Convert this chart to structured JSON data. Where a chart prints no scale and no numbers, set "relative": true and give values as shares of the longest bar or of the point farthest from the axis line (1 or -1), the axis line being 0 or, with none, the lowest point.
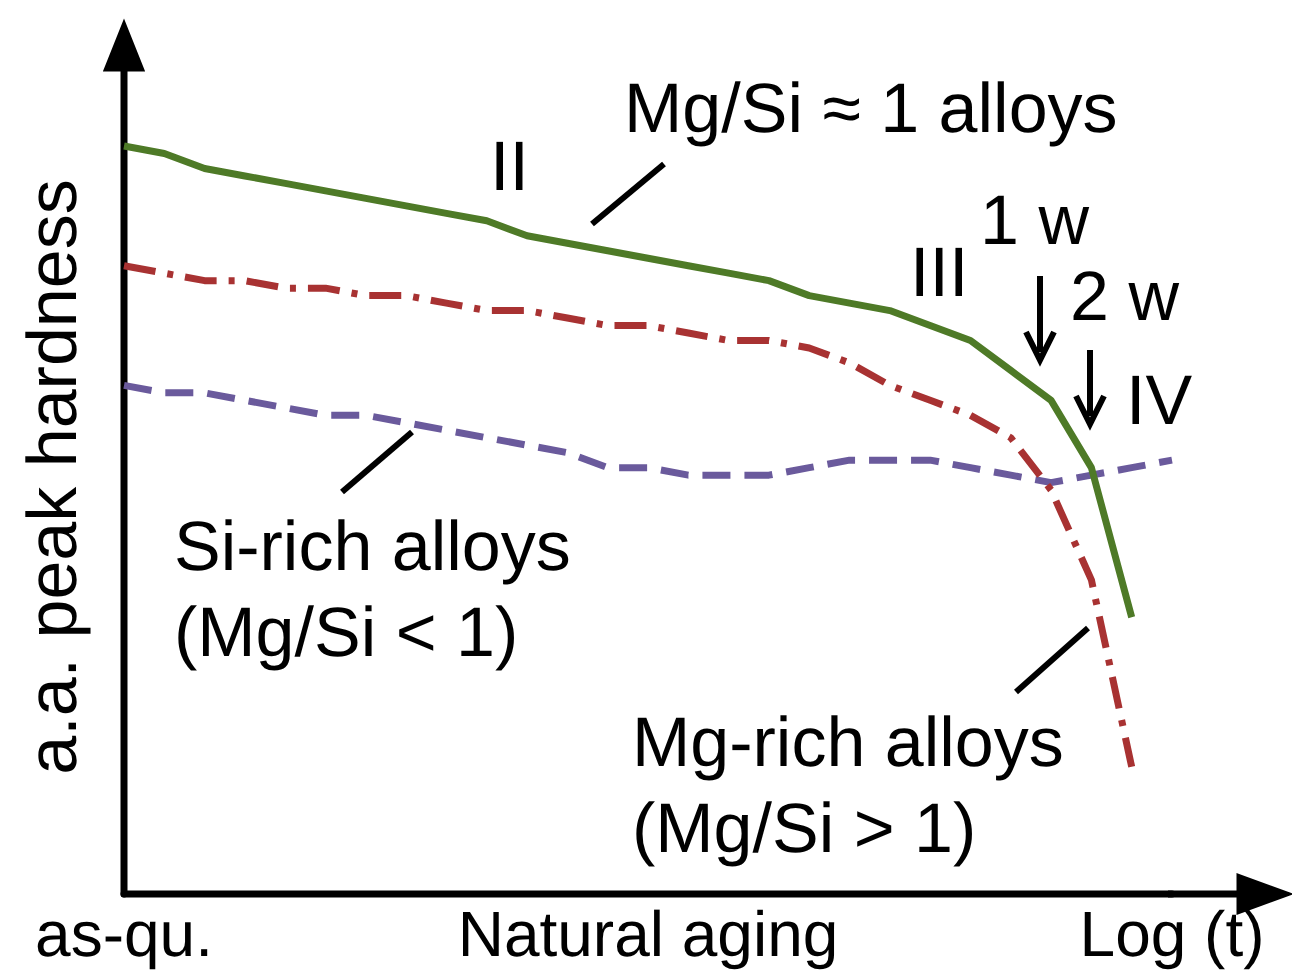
{
  "chart_data": {
    "type": "line",
    "relative": true,
    "xlabel": "Natural aging",
    "ylabel": "a.a. peak hardness",
    "categories": [
      "as-qu.",
      null,
      null,
      null,
      null,
      null,
      null,
      null,
      null,
      null,
      null,
      null,
      null,
      null,
      null,
      null,
      null,
      null,
      null,
      null,
      null,
      null,
      null,
      null,
      null,
      null,
      "Log (t)"
    ],
    "series": [
      {
        "name": "Mg/Si ≈ 1 alloys",
        "color": "#4e7a27",
        "line_style": "solid",
        "values": [
          1.0,
          0.99,
          0.97,
          0.96,
          0.95,
          0.94,
          0.93,
          0.92,
          0.91,
          0.9,
          0.88,
          0.87,
          0.86,
          0.85,
          0.84,
          0.83,
          0.82,
          0.8,
          0.79,
          0.78,
          0.76,
          0.74,
          0.7,
          0.66,
          0.57,
          0.37,
          null
        ]
      },
      {
        "name": "Mg-rich alloys (Mg/Si > 1)",
        "color": "#a83232",
        "line_style": "dashdot",
        "values": [
          0.84,
          0.83,
          0.82,
          0.82,
          0.81,
          0.81,
          0.8,
          0.8,
          0.79,
          0.78,
          0.78,
          0.77,
          0.76,
          0.76,
          0.75,
          0.74,
          0.74,
          0.73,
          0.71,
          0.68,
          0.66,
          0.64,
          0.61,
          0.54,
          0.42,
          0.17,
          null
        ]
      },
      {
        "name": "Si-rich alloys (Mg/Si < 1)",
        "color": "#6a5a9c",
        "line_style": "dashed",
        "values": [
          0.68,
          0.67,
          0.67,
          0.66,
          0.65,
          0.64,
          0.64,
          0.63,
          0.62,
          0.61,
          0.6,
          0.59,
          0.57,
          0.57,
          0.56,
          0.56,
          0.56,
          0.57,
          0.58,
          0.58,
          0.58,
          0.57,
          0.56,
          0.55,
          0.56,
          0.57,
          0.58
        ]
      }
    ],
    "annotations": [
      "II",
      "III",
      "1 w",
      "2 w",
      "IV"
    ],
    "grid": false,
    "legend": false,
    "marker": "none"
  }
}
